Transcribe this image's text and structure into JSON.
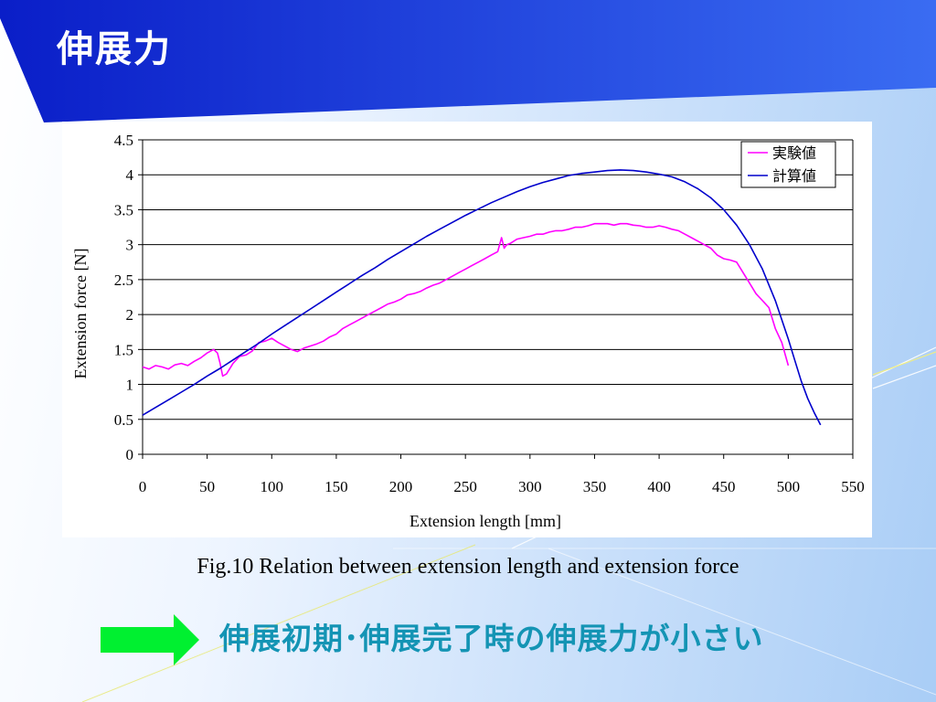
{
  "slide": {
    "title": "伸展力",
    "caption": "Fig.10 Relation between extension length and extension force",
    "conclusion": "伸展初期･伸展完了時の伸展力が小さい"
  },
  "colors": {
    "banner_start": "#0a1ec8",
    "banner_end": "#3a6cf2",
    "arrow": "#00f030",
    "conclusion_text": "#1494b4",
    "experimental": "#ff00ff",
    "calculated": "#0000cc"
  },
  "icons": {
    "arrow": "right-arrow-icon"
  },
  "chart_data": {
    "type": "line",
    "title": "",
    "xlabel": "Extension length [mm]",
    "ylabel": "Extension force [N]",
    "xlim": [
      0,
      550
    ],
    "ylim": [
      0,
      4.5
    ],
    "xticks": [
      "0",
      "50",
      "100",
      "150",
      "200",
      "250",
      "300",
      "350",
      "400",
      "450",
      "500",
      "550"
    ],
    "yticks": [
      "0",
      "0.5",
      "1",
      "1.5",
      "2",
      "2.5",
      "3",
      "3.5",
      "4",
      "4.5"
    ],
    "grid": "horizontal",
    "legend": "top-right",
    "series": [
      {
        "name": "実験値",
        "color": "#ff00ff",
        "x": [
          0,
          5,
          10,
          15,
          20,
          25,
          30,
          35,
          40,
          45,
          50,
          55,
          58,
          60,
          62,
          65,
          70,
          75,
          80,
          85,
          90,
          95,
          100,
          105,
          110,
          115,
          120,
          125,
          130,
          135,
          140,
          145,
          150,
          155,
          160,
          165,
          170,
          175,
          180,
          185,
          190,
          195,
          200,
          205,
          210,
          215,
          220,
          225,
          230,
          235,
          240,
          245,
          250,
          255,
          260,
          265,
          270,
          275,
          278,
          280,
          282,
          285,
          290,
          295,
          300,
          305,
          310,
          315,
          320,
          325,
          330,
          335,
          340,
          345,
          350,
          355,
          360,
          365,
          370,
          375,
          380,
          385,
          390,
          395,
          400,
          405,
          410,
          415,
          420,
          425,
          430,
          435,
          440,
          445,
          450,
          455,
          460,
          465,
          470,
          475,
          480,
          485,
          490,
          495,
          500
        ],
        "y": [
          1.25,
          1.22,
          1.27,
          1.25,
          1.22,
          1.28,
          1.3,
          1.27,
          1.33,
          1.38,
          1.45,
          1.5,
          1.45,
          1.3,
          1.12,
          1.15,
          1.3,
          1.4,
          1.42,
          1.48,
          1.6,
          1.62,
          1.66,
          1.6,
          1.55,
          1.5,
          1.47,
          1.52,
          1.55,
          1.58,
          1.62,
          1.68,
          1.72,
          1.8,
          1.85,
          1.9,
          1.95,
          2.0,
          2.05,
          2.1,
          2.15,
          2.18,
          2.22,
          2.28,
          2.3,
          2.33,
          2.38,
          2.42,
          2.45,
          2.5,
          2.55,
          2.6,
          2.65,
          2.7,
          2.75,
          2.8,
          2.85,
          2.9,
          3.1,
          2.95,
          3.0,
          3.02,
          3.08,
          3.1,
          3.12,
          3.15,
          3.15,
          3.18,
          3.2,
          3.2,
          3.22,
          3.25,
          3.25,
          3.27,
          3.3,
          3.3,
          3.3,
          3.28,
          3.3,
          3.3,
          3.28,
          3.27,
          3.25,
          3.25,
          3.27,
          3.25,
          3.22,
          3.2,
          3.15,
          3.1,
          3.05,
          3.0,
          2.95,
          2.85,
          2.8,
          2.78,
          2.75,
          2.6,
          2.45,
          2.3,
          2.2,
          2.1,
          1.8,
          1.6,
          1.27
        ]
      },
      {
        "name": "計算値",
        "color": "#0000cc",
        "x": [
          0,
          10,
          20,
          30,
          40,
          50,
          60,
          70,
          80,
          90,
          100,
          110,
          120,
          130,
          140,
          150,
          160,
          170,
          180,
          190,
          200,
          210,
          220,
          230,
          240,
          250,
          260,
          270,
          280,
          290,
          300,
          310,
          320,
          330,
          340,
          350,
          360,
          370,
          380,
          390,
          400,
          410,
          420,
          430,
          440,
          450,
          460,
          470,
          480,
          490,
          500,
          505,
          510,
          515,
          520,
          525
        ],
        "y": [
          0.56,
          0.67,
          0.78,
          0.89,
          1.0,
          1.12,
          1.23,
          1.35,
          1.47,
          1.59,
          1.72,
          1.84,
          1.96,
          2.08,
          2.2,
          2.32,
          2.44,
          2.56,
          2.67,
          2.79,
          2.9,
          3.01,
          3.12,
          3.22,
          3.32,
          3.42,
          3.51,
          3.6,
          3.68,
          3.76,
          3.83,
          3.89,
          3.94,
          3.99,
          4.02,
          4.04,
          4.06,
          4.07,
          4.06,
          4.04,
          4.01,
          3.97,
          3.9,
          3.8,
          3.67,
          3.5,
          3.28,
          3.0,
          2.65,
          2.2,
          1.65,
          1.35,
          1.05,
          0.8,
          0.6,
          0.42
        ]
      }
    ]
  }
}
